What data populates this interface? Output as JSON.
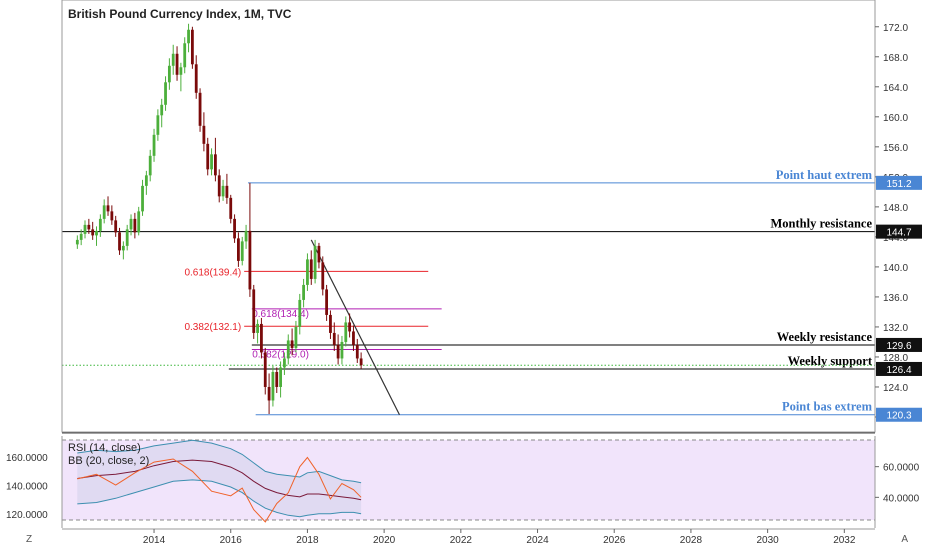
{
  "chart_data": [
    {
      "type": "candlestick",
      "title": "British Pound Currency Index, 1M, TVC",
      "ylim": [
        118.0,
        174.5
      ],
      "xlim": [
        2011.6,
        2032.8
      ],
      "x_ticks": [
        "2014",
        "2016",
        "2018",
        "2020",
        "2022",
        "2024",
        "2026",
        "2028",
        "2030",
        "2032"
      ],
      "y_ticks": [
        "120.0",
        "124.0",
        "128.0",
        "132.0",
        "136.0",
        "140.0",
        "144.0",
        "148.0",
        "152.0",
        "156.0",
        "160.0",
        "164.0",
        "168.0",
        "172.0"
      ],
      "candles": [
        [
          2012.0,
          143.0,
          144.2,
          142.4,
          143.6
        ],
        [
          2012.1,
          143.6,
          145.0,
          142.9,
          144.4
        ],
        [
          2012.2,
          144.4,
          146.2,
          143.8,
          145.6
        ],
        [
          2012.3,
          145.6,
          146.4,
          144.4,
          145.0
        ],
        [
          2012.4,
          145.0,
          146.0,
          143.6,
          144.2
        ],
        [
          2012.5,
          144.2,
          145.4,
          142.8,
          144.8
        ],
        [
          2012.6,
          144.8,
          147.0,
          144.0,
          146.4
        ],
        [
          2012.7,
          146.4,
          149.0,
          145.8,
          148.2
        ],
        [
          2012.8,
          148.2,
          149.4,
          146.8,
          147.4
        ],
        [
          2012.9,
          147.4,
          148.2,
          145.6,
          146.2
        ],
        [
          2013.0,
          146.2,
          146.8,
          144.0,
          144.6
        ],
        [
          2013.1,
          144.6,
          145.2,
          141.6,
          142.2
        ],
        [
          2013.2,
          142.2,
          143.4,
          141.0,
          142.8
        ],
        [
          2013.3,
          142.8,
          145.6,
          142.2,
          145.0
        ],
        [
          2013.4,
          145.0,
          147.0,
          144.2,
          146.4
        ],
        [
          2013.5,
          146.4,
          147.2,
          143.8,
          144.6
        ],
        [
          2013.6,
          144.6,
          148.0,
          144.2,
          147.4
        ],
        [
          2013.7,
          147.4,
          151.6,
          146.8,
          150.8
        ],
        [
          2013.8,
          150.8,
          152.8,
          149.6,
          152.2
        ],
        [
          2013.9,
          152.2,
          155.6,
          151.4,
          154.8
        ],
        [
          2014.0,
          154.8,
          158.4,
          154.0,
          157.6
        ],
        [
          2014.1,
          157.6,
          161.0,
          156.8,
          160.2
        ],
        [
          2014.2,
          160.2,
          162.4,
          158.6,
          161.6
        ],
        [
          2014.3,
          161.6,
          165.4,
          160.8,
          164.6
        ],
        [
          2014.4,
          164.6,
          167.8,
          163.6,
          166.8
        ],
        [
          2014.5,
          166.8,
          169.6,
          165.6,
          168.4
        ],
        [
          2014.6,
          168.4,
          169.4,
          164.8,
          165.6
        ],
        [
          2014.7,
          165.6,
          167.2,
          163.4,
          166.6
        ],
        [
          2014.8,
          166.6,
          170.6,
          165.8,
          169.8
        ],
        [
          2014.9,
          169.8,
          172.4,
          168.6,
          171.6
        ],
        [
          2015.0,
          171.6,
          172.0,
          166.4,
          167.0
        ],
        [
          2015.1,
          167.0,
          168.2,
          162.4,
          163.2
        ],
        [
          2015.2,
          163.2,
          163.8,
          158.0,
          158.8
        ],
        [
          2015.3,
          158.8,
          160.6,
          155.4,
          156.4
        ],
        [
          2015.4,
          156.4,
          157.2,
          152.2,
          153.0
        ],
        [
          2015.5,
          153.0,
          155.8,
          152.2,
          155.0
        ],
        [
          2015.6,
          155.0,
          157.2,
          151.4,
          152.2
        ],
        [
          2015.7,
          152.2,
          153.0,
          148.6,
          149.4
        ],
        [
          2015.8,
          149.4,
          151.6,
          148.8,
          150.8
        ],
        [
          2015.9,
          150.8,
          152.4,
          148.4,
          149.2
        ],
        [
          2016.0,
          149.2,
          149.6,
          145.8,
          146.4
        ],
        [
          2016.1,
          146.4,
          147.0,
          143.2,
          143.8
        ],
        [
          2016.2,
          143.8,
          144.6,
          140.0,
          140.8
        ],
        [
          2016.3,
          140.8,
          144.0,
          140.2,
          143.4
        ],
        [
          2016.4,
          143.4,
          145.6,
          142.4,
          144.8
        ],
        [
          2016.5,
          144.8,
          151.2,
          136.0,
          137.0
        ],
        [
          2016.6,
          137.0,
          137.6,
          130.4,
          131.2
        ],
        [
          2016.7,
          131.2,
          133.0,
          129.8,
          132.4
        ],
        [
          2016.8,
          132.4,
          133.2,
          127.8,
          128.6
        ],
        [
          2016.9,
          128.6,
          129.2,
          123.0,
          124.0
        ],
        [
          2017.0,
          124.0,
          125.8,
          120.4,
          122.2
        ],
        [
          2017.1,
          122.2,
          126.8,
          121.4,
          126.0
        ],
        [
          2017.2,
          126.0,
          126.6,
          123.2,
          124.0
        ],
        [
          2017.3,
          124.0,
          127.4,
          122.6,
          126.6
        ],
        [
          2017.4,
          126.6,
          128.6,
          125.6,
          127.8
        ],
        [
          2017.5,
          127.8,
          131.0,
          127.0,
          130.2
        ],
        [
          2017.6,
          130.2,
          131.8,
          128.2,
          129.2
        ],
        [
          2017.7,
          129.2,
          132.8,
          128.6,
          132.0
        ],
        [
          2017.8,
          132.0,
          136.4,
          131.0,
          135.6
        ],
        [
          2017.9,
          135.6,
          138.4,
          134.6,
          137.6
        ],
        [
          2018.0,
          137.6,
          141.8,
          136.8,
          141.0
        ],
        [
          2018.1,
          141.0,
          142.2,
          137.6,
          138.4
        ],
        [
          2018.2,
          138.4,
          143.6,
          137.8,
          142.8
        ],
        [
          2018.3,
          142.8,
          143.2,
          139.8,
          140.6
        ],
        [
          2018.4,
          140.6,
          141.4,
          136.2,
          137.0
        ],
        [
          2018.5,
          137.0,
          137.6,
          132.8,
          133.6
        ],
        [
          2018.6,
          133.6,
          134.2,
          130.4,
          131.2
        ],
        [
          2018.7,
          131.2,
          132.6,
          128.8,
          129.6
        ],
        [
          2018.8,
          129.6,
          131.0,
          127.0,
          127.8
        ],
        [
          2018.9,
          127.8,
          130.8,
          127.0,
          130.0
        ],
        [
          2019.0,
          130.0,
          133.4,
          129.4,
          132.6
        ],
        [
          2019.1,
          132.6,
          133.8,
          130.6,
          131.4
        ],
        [
          2019.2,
          131.4,
          132.2,
          128.8,
          129.6
        ],
        [
          2019.3,
          129.6,
          130.4,
          127.2,
          127.8
        ],
        [
          2019.4,
          127.8,
          128.6,
          126.4,
          126.9
        ]
      ],
      "horizontal_levels": [
        {
          "value": 151.2,
          "label": "Point haut extrem",
          "color": "#4a86d4",
          "price_label": "151.2"
        },
        {
          "value": 144.7,
          "label": "Monthly resistance",
          "color": "#000000",
          "price_label": "144.7"
        },
        {
          "value": 129.6,
          "label": "Weekly resistance",
          "color": "#000000",
          "price_label": "129.6"
        },
        {
          "value": 126.4,
          "label": "Weekly support",
          "color": "#000000",
          "price_label": "126.4"
        },
        {
          "value": 120.3,
          "label": "Point bas extrem",
          "color": "#4a86d4",
          "price_label": "120.3"
        }
      ],
      "fib_levels": [
        {
          "value": 139.4,
          "label": "0.618(139.4)",
          "color": "#e8232a"
        },
        {
          "value": 132.1,
          "label": "0.382(132.1)",
          "color": "#e8232a"
        },
        {
          "value": 134.4,
          "label": "0.618(134.4)",
          "color": "#b01fb3"
        },
        {
          "value": 129.0,
          "label": "0.382(129.0)",
          "color": "#b01fb3"
        }
      ],
      "current_price": 126.9,
      "trendline": {
        "from": [
          2018.1,
          143.6
        ],
        "to": [
          2020.4,
          120.3
        ]
      },
      "colors": {
        "up": "#4caf3b",
        "down": "#7a0a0a",
        "current": "#3cb63c"
      }
    },
    {
      "type": "line",
      "left_ticks": [
        "160.0000",
        "140.0000",
        "120.0000"
      ],
      "right_ticks": [
        "60.0000",
        "40.0000"
      ],
      "rsi_ylim": [
        20,
        80
      ],
      "bb_ylim": [
        110,
        175
      ],
      "legend": [
        "RSI (14, close)",
        "BB (20, close, 2)"
      ],
      "rsi_x": [
        2012.0,
        2012.5,
        2013.0,
        2013.5,
        2014.0,
        2014.5,
        2015.0,
        2015.5,
        2016.0,
        2016.3,
        2016.6,
        2016.9,
        2017.2,
        2017.5,
        2017.8,
        2018.0,
        2018.3,
        2018.6,
        2018.9,
        2019.2,
        2019.4
      ],
      "rsi": [
        52,
        55,
        48,
        56,
        63,
        65,
        57,
        44,
        41,
        46,
        32,
        24,
        36,
        43,
        60,
        66,
        55,
        39,
        49,
        45,
        40
      ],
      "bb_upper": [
        163,
        165,
        164,
        165,
        168,
        170,
        172,
        170,
        166,
        162,
        156,
        150,
        148,
        147,
        146,
        149,
        150,
        147,
        144,
        143,
        142
      ],
      "bb_mid": [
        145,
        147,
        148,
        150,
        154,
        157,
        158,
        157,
        153,
        149,
        143,
        138,
        135,
        133,
        132,
        134,
        134,
        133,
        132,
        131,
        130
      ],
      "bb_lower": [
        127,
        128,
        131,
        135,
        139,
        143,
        144,
        143,
        139,
        135,
        129,
        124,
        121,
        119,
        118,
        119,
        120,
        120,
        121,
        121,
        120
      ]
    }
  ],
  "axis_corners": {
    "left": "Z",
    "right": "A"
  }
}
